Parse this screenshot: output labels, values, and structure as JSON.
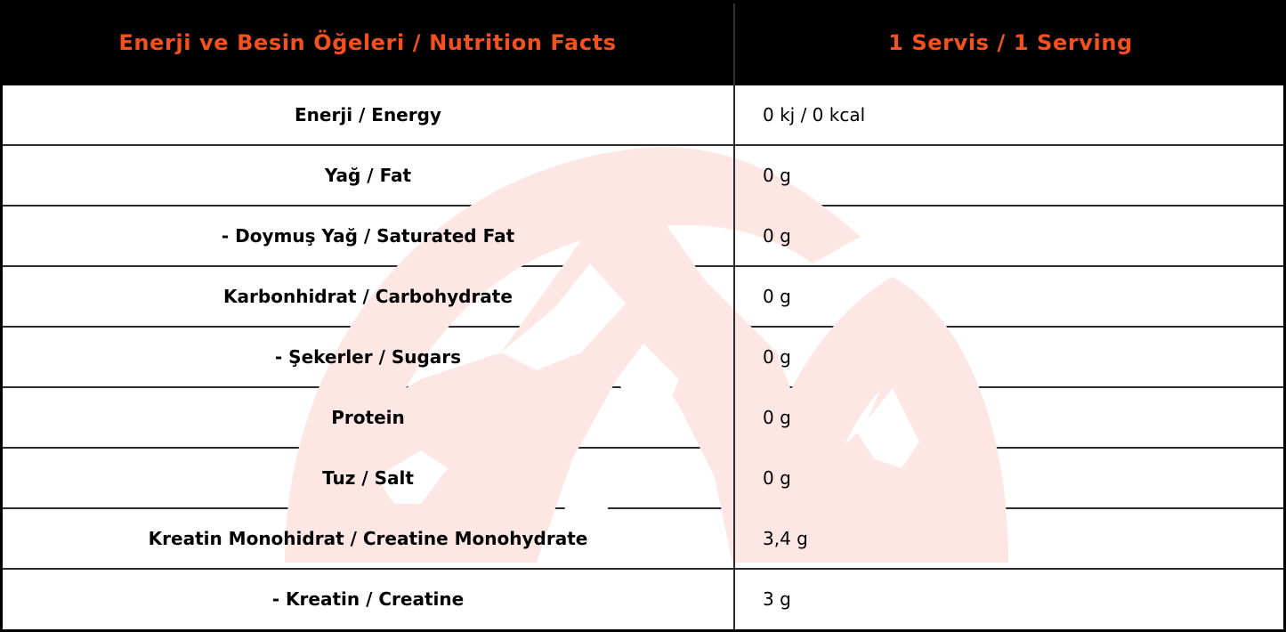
{
  "header": {
    "left": "Enerji ve Besin Öğeleri / Nutrition Facts",
    "right": "1 Servis / 1 Serving"
  },
  "rows": [
    {
      "label": "Enerji / Energy",
      "value": "0 kj / 0 kcal"
    },
    {
      "label": "Yağ / Fat",
      "value": "0 g"
    },
    {
      "label": "- Doymuş Yağ / Saturated Fat",
      "value": "0 g"
    },
    {
      "label": "Karbonhidrat / Carbohydrate",
      "value": "0 g"
    },
    {
      "label": "- Şekerler / Sugars",
      "value": "0 g"
    },
    {
      "label": "Protein",
      "value": "0 g"
    },
    {
      "label": "Tuz / Salt",
      "value": "0 g"
    },
    {
      "label": "Kreatin Monohidrat / Creatine Monohydrate",
      "value": "3,4 g"
    },
    {
      "label": "- Kreatin / Creatine",
      "value": "3 g"
    }
  ],
  "colors": {
    "header_text": "#f4511e",
    "watermark": "#fde6e3"
  }
}
